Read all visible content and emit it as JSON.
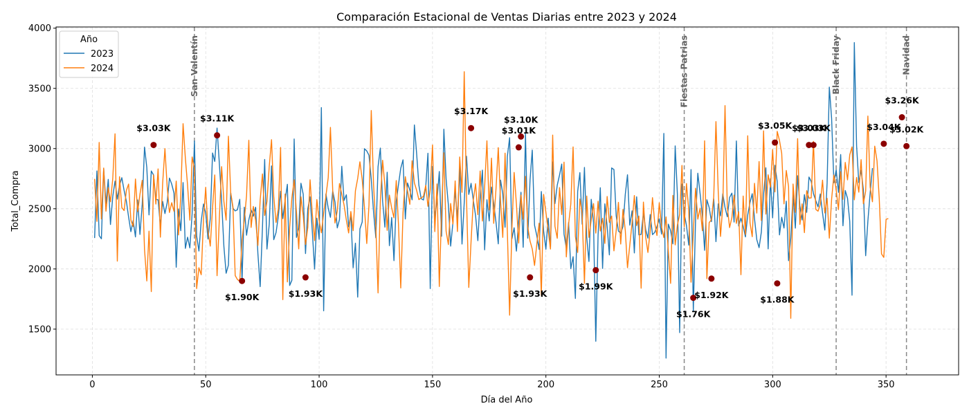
{
  "chart_data": {
    "type": "line",
    "title": "Comparación Estacional de Ventas Diarias entre 2023 y 2024",
    "xlabel": "Día del Año",
    "ylabel": "Total_Compra",
    "xlim": [
      -16,
      382
    ],
    "ylim": [
      1120,
      4010
    ],
    "xticks": [
      0,
      50,
      100,
      150,
      200,
      250,
      300,
      350
    ],
    "yticks": [
      1500,
      2000,
      2500,
      3000,
      3500,
      4000
    ],
    "grid": true,
    "legend": {
      "title": "Año",
      "placement": "top-left"
    },
    "colors": {
      "2023": "#1f77b4",
      "2024": "#ff7f0e",
      "marker": "#8b0000",
      "event_line": "#888888"
    },
    "series": [
      {
        "name": "2023",
        "x_start": 1,
        "values": [
          2257,
          2814,
          2277,
          2251,
          2834,
          2544,
          2744,
          2369,
          2601,
          2730,
          2580,
          2697,
          2758,
          2652,
          2562,
          2431,
          2310,
          2402,
          2266,
          2573,
          2287,
          2538,
          3012,
          2843,
          2449,
          2814,
          2780,
          2579,
          2574,
          2359,
          2561,
          2460,
          2549,
          2755,
          2704,
          2630,
          2014,
          2498,
          2318,
          2718,
          2171,
          2264,
          2175,
          2460,
          3063,
          2274,
          2149,
          2397,
          2540,
          2466,
          2249,
          2418,
          2963,
          2893,
          3170,
          2877,
          2564,
          2185,
          1964,
          2032,
          2632,
          2504,
          2482,
          2492,
          2578,
          1904,
          2513,
          2280,
          2408,
          2490,
          2438,
          2513,
          2128,
          1853,
          2343,
          2909,
          2165,
          2372,
          2856,
          2243,
          2302,
          2435,
          2645,
          2418,
          2571,
          2703,
          1863,
          1906,
          3079,
          2262,
          2338,
          2712,
          2620,
          2128,
          2499,
          2599,
          2314,
          1999,
          2422,
          2246,
          3340,
          1652,
          2623,
          2505,
          2429,
          2647,
          2556,
          2341,
          2411,
          2852,
          2569,
          2616,
          2350,
          2454,
          2010,
          2214,
          1766,
          2333,
          2390,
          2999,
          2980,
          2945,
          2745,
          2473,
          2259,
          2849,
          3004,
          2562,
          2347,
          2803,
          2193,
          2427,
          2069,
          2560,
          2700,
          2836,
          2906,
          2415,
          2714,
          2655,
          2574,
          3196,
          2961,
          2695,
          2584,
          2573,
          2682,
          2961,
          1837,
          2852,
          2425,
          2567,
          2810,
          2272,
          3161,
          2749,
          2531,
          2190,
          2387,
          2652,
          2419,
          2843,
          2207,
          2549,
          2936,
          2619,
          2711,
          2566,
          2444,
          2235,
          2586,
          2821,
          2159,
          2575,
          2399,
          2680,
          2543,
          2389,
          2208,
          2738,
          2624,
          2346,
          2934,
          3090,
          2250,
          2342,
          2148,
          2401,
          2637,
          2180,
          3128,
          2256,
          2740,
          2988,
          2363,
          2276,
          2162,
          2643,
          2315,
          2164,
          2422,
          2172,
          2889,
          2543,
          2696,
          2780,
          2871,
          2289,
          2174,
          2386,
          2003,
          2102,
          1755,
          2643,
          2800,
          2372,
          2843,
          2260,
          2062,
          2578,
          2387,
          1399,
          2281,
          2674,
          2004,
          2541,
          2353,
          2117,
          2839,
          2826,
          2441,
          2315,
          2296,
          2353,
          2619,
          2782,
          2364,
          2483,
          2133,
          2599,
          2283,
          2287,
          2465,
          2326,
          2256,
          2452,
          2285,
          2304,
          2353,
          2416,
          2290,
          3126,
          1259,
          2372,
          2317,
          2209,
          3022,
          2618,
          1471,
          2705,
          2457,
          2361,
          2198,
          2825,
          1647,
          2404,
          2795,
          2625,
          2444,
          2155,
          2575,
          2510,
          2393,
          2582,
          2227,
          2541,
          2441,
          2624,
          2511,
          2434,
          2593,
          2630,
          2389,
          3063,
          2357,
          2422,
          2355,
          2266,
          2448,
          2552,
          2625,
          2418,
          2244,
          2177,
          2307,
          2624,
          2840,
          2167,
          2749,
          2425,
          2861,
          2726,
          2283,
          2429,
          2340,
          2563,
          2069,
          2255,
          2617,
          2339,
          2774,
          2524,
          2407,
          2617,
          2470,
          2763,
          2727,
          2625,
          2568,
          2516,
          2623,
          2464,
          2323,
          2713,
          3510,
          3250,
          2716,
          2823,
          2637,
          2950,
          2359,
          2651,
          2587,
          2395,
          1782,
          3880,
          3022,
          2717,
          2820,
          2657,
          2110,
          2398,
          2633,
          2838
        ]
      },
      {
        "name": "2024",
        "x_start": 1,
        "values": [
          2748,
          2395,
          3051,
          2415,
          2838,
          2480,
          2676,
          2558,
          2749,
          3123,
          2065,
          2766,
          2510,
          2485,
          2653,
          2705,
          2406,
          2351,
          2747,
          2476,
          2621,
          2736,
          2161,
          1900,
          2314,
          1812,
          2781,
          2539,
          2831,
          2264,
          2713,
          3000,
          2685,
          2469,
          2550,
          2478,
          2730,
          2283,
          2615,
          3207,
          2920,
          2695,
          2405,
          2930,
          2832,
          1837,
          2010,
          1952,
          2409,
          2678,
          2318,
          2190,
          2506,
          2781,
          1944,
          2419,
          2850,
          2559,
          2406,
          3103,
          2634,
          2514,
          1945,
          1912,
          1898,
          2240,
          2400,
          2608,
          3069,
          2345,
          2519,
          2406,
          2195,
          2574,
          2789,
          2444,
          2561,
          2853,
          3074,
          2603,
          2386,
          2497,
          3009,
          1745,
          2622,
          1892,
          2346,
          2590,
          2740,
          2473,
          2167,
          2599,
          2444,
          2203,
          2345,
          2740,
          2460,
          2236,
          2576,
          2402,
          2300,
          2461,
          2607,
          2758,
          3176,
          2654,
          2381,
          2483,
          2710,
          2621,
          2531,
          2406,
          2299,
          2477,
          2318,
          2649,
          2752,
          2890,
          2744,
          2509,
          2211,
          2531,
          3316,
          2702,
          2355,
          1801,
          2563,
          2903,
          2694,
          2320,
          2613,
          2506,
          2425,
          2734,
          2373,
          1842,
          2467,
          2766,
          2650,
          2537,
          2898,
          2715,
          2654,
          2576,
          2590,
          2603,
          2694,
          2520,
          2660,
          3030,
          2310,
          2706,
          1854,
          2480,
          2965,
          2315,
          2203,
          2544,
          2373,
          2731,
          2311,
          2930,
          2636,
          3638,
          2593,
          1846,
          2230,
          2576,
          2708,
          2451,
          2813,
          2398,
          2680,
          3064,
          2490,
          2920,
          2379,
          2664,
          3008,
          2561,
          2262,
          2962,
          2316,
          1616,
          2337,
          2802,
          2539,
          2215,
          2613,
          2413,
          2769,
          2349,
          2232,
          2166,
          2029,
          2207,
          2380,
          1781,
          2619,
          2470,
          2323,
          2165,
          3112,
          2355,
          2255,
          2676,
          2452,
          2887,
          2100,
          2370,
          2540,
          3014,
          2270,
          2137,
          2581,
          2462,
          1880,
          2605,
          2262,
          2409,
          2543,
          2298,
          2562,
          2315,
          2421,
          2212,
          2602,
          2387,
          2440,
          2150,
          2321,
          2553,
          2207,
          2495,
          2320,
          2010,
          2197,
          2382,
          2610,
          2360,
          2440,
          1840,
          2555,
          2263,
          2137,
          2318,
          2592,
          2379,
          2278,
          2550,
          2350,
          2260,
          2432,
          2148,
          1880,
          2611,
          2200,
          2365,
          2454,
          2860,
          2350,
          2710,
          2487,
          1890,
          2306,
          2670,
          2414,
          2505,
          2318,
          3064,
          1920,
          2385,
          2410,
          2598,
          3224,
          2640,
          2270,
          2528,
          3357,
          2516,
          2344,
          2426,
          2613,
          2378,
          2476,
          1952,
          2605,
          2286,
          3106,
          2384,
          2268,
          2711,
          2464,
          2892,
          2402,
          3147,
          2455,
          2782,
          2678,
          2992,
          2640,
          3143,
          3067,
          2960,
          2541,
          2818,
          2684,
          1590,
          2705,
          2470,
          3082,
          2370,
          2541,
          2302,
          2650,
          2588,
          2590,
          3059,
          2495,
          2480,
          2536,
          2738,
          2465,
          2587,
          2256,
          2580,
          2780,
          2656,
          2493,
          2808,
          2578,
          2885,
          2740,
          2948,
          3014,
          2574,
          2760,
          2638,
          2908,
          2542,
          2647,
          3270,
          2680,
          2558,
          3020,
          2898,
          2587,
          2125,
          2096,
          2413,
          2418
        ]
      }
    ],
    "events": [
      {
        "day": 45,
        "label": "San Valentín"
      },
      {
        "day": 261,
        "label": "Fiestas Patrias"
      },
      {
        "day": 328,
        "label": "Black Friday"
      },
      {
        "day": 359,
        "label": "Navidad"
      }
    ],
    "annotations": [
      {
        "x": 27,
        "y": 3030,
        "label": "$3.03K",
        "pos": "above"
      },
      {
        "x": 55,
        "y": 3110,
        "label": "$3.11K",
        "pos": "above"
      },
      {
        "x": 66,
        "y": 1900,
        "label": "$1.90K",
        "pos": "below"
      },
      {
        "x": 94,
        "y": 1930,
        "label": "$1.93K",
        "pos": "below"
      },
      {
        "x": 167,
        "y": 3170,
        "label": "$3.17K",
        "pos": "above"
      },
      {
        "x": 188,
        "y": 3010,
        "label": "$3.01K",
        "pos": "above"
      },
      {
        "x": 189,
        "y": 3100,
        "label": "$3.10K",
        "pos": "above"
      },
      {
        "x": 193,
        "y": 1930,
        "label": "$1.93K",
        "pos": "below"
      },
      {
        "x": 222,
        "y": 1990,
        "label": "$1.99K",
        "pos": "below"
      },
      {
        "x": 265,
        "y": 1760,
        "label": "$1.76K",
        "pos": "below"
      },
      {
        "x": 273,
        "y": 1920,
        "label": "$1.92K",
        "pos": "below"
      },
      {
        "x": 301,
        "y": 3050,
        "label": "$3.05K",
        "pos": "above"
      },
      {
        "x": 302,
        "y": 1880,
        "label": "$1.88K",
        "pos": "below"
      },
      {
        "x": 316,
        "y": 3030,
        "label": "$3.03K",
        "pos": "above"
      },
      {
        "x": 318,
        "y": 3030,
        "label": "$3.03K",
        "pos": "above"
      },
      {
        "x": 349,
        "y": 3040,
        "label": "$3.04K",
        "pos": "above"
      },
      {
        "x": 357,
        "y": 3260,
        "label": "$3.26K",
        "pos": "above"
      },
      {
        "x": 359,
        "y": 3020,
        "label": "$3.02K",
        "pos": "above"
      }
    ]
  }
}
